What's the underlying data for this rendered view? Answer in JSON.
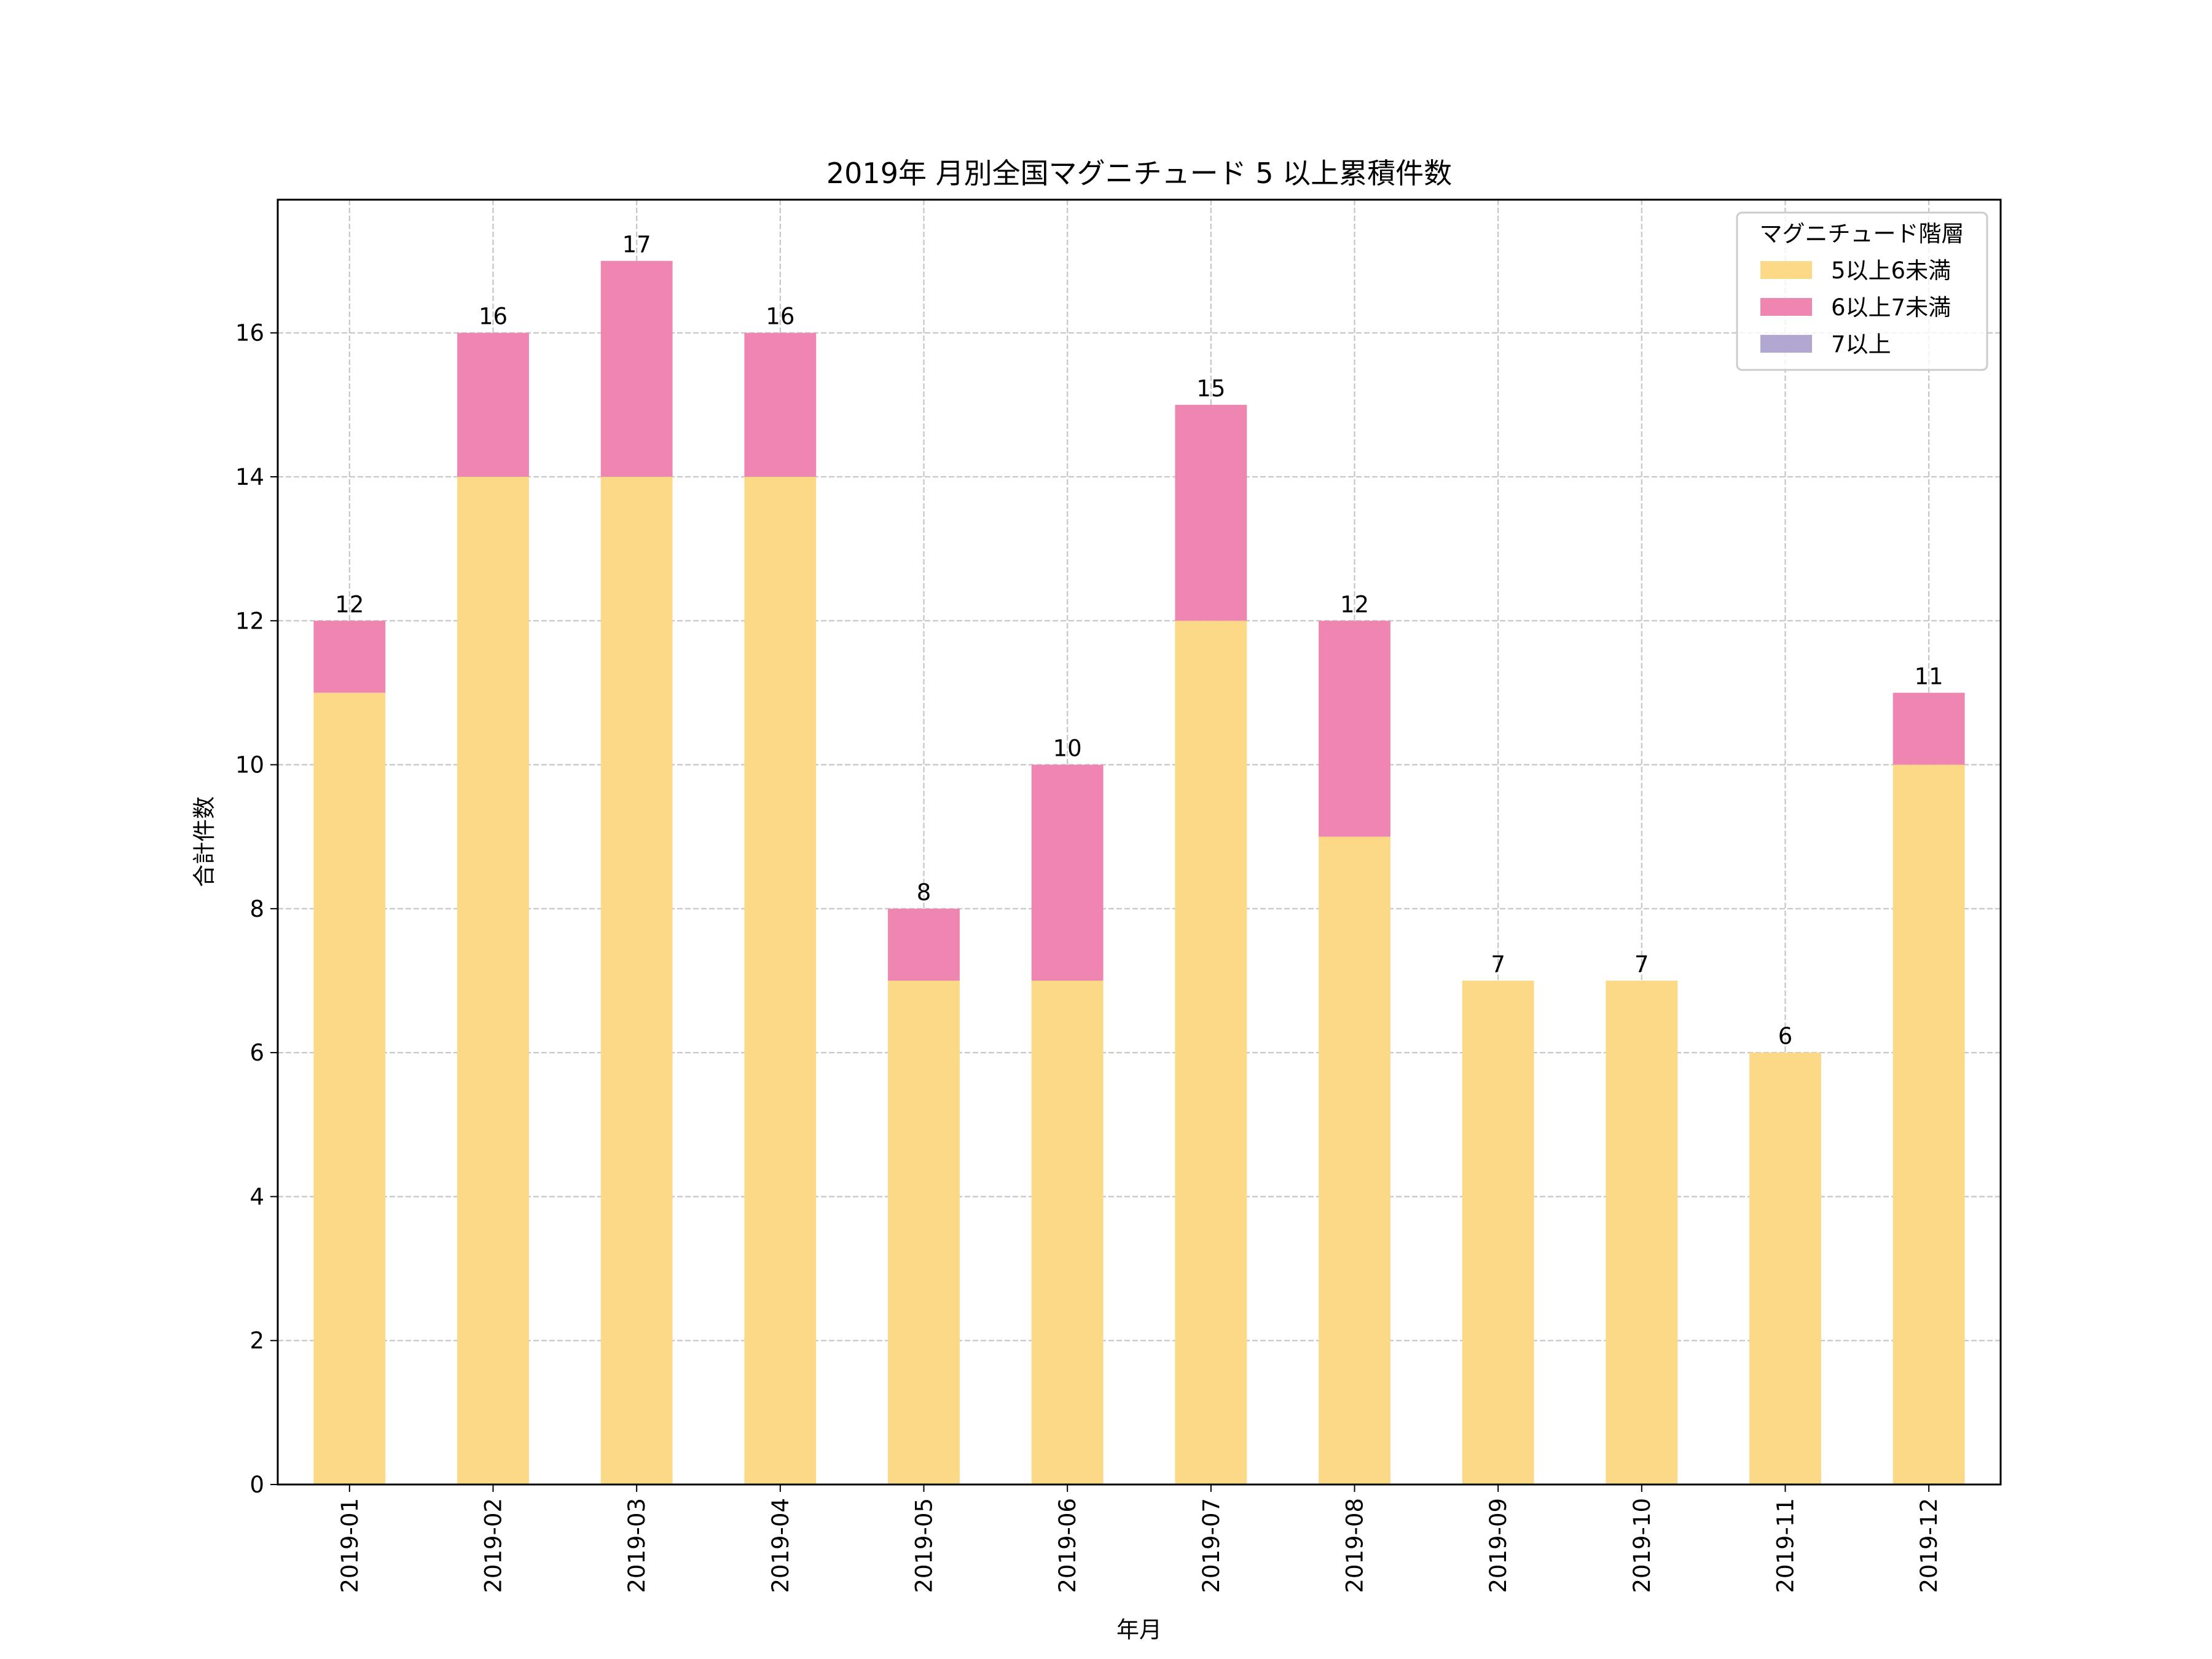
{
  "chart_data": {
    "type": "bar",
    "stacked": true,
    "title": "2019年 月別全国マグニチュード 5 以上累積件数",
    "xlabel": "年月",
    "ylabel": "合計件数",
    "categories": [
      "2019-01",
      "2019-02",
      "2019-03",
      "2019-04",
      "2019-05",
      "2019-06",
      "2019-07",
      "2019-08",
      "2019-09",
      "2019-10",
      "2019-11",
      "2019-12"
    ],
    "series": [
      {
        "name": "5以上6未満",
        "color": "#fbd986",
        "values": [
          11,
          14,
          14,
          14,
          7,
          7,
          12,
          9,
          7,
          7,
          6,
          10
        ]
      },
      {
        "name": "6以上7未満",
        "color": "#ee86b1",
        "values": [
          1,
          2,
          3,
          2,
          1,
          3,
          3,
          3,
          0,
          0,
          0,
          1
        ]
      },
      {
        "name": "7以上",
        "color": "#b1a7d0",
        "values": [
          0,
          0,
          0,
          0,
          0,
          0,
          0,
          0,
          0,
          0,
          0,
          0
        ]
      }
    ],
    "totals": [
      12,
      16,
      17,
      16,
      8,
      10,
      15,
      12,
      7,
      7,
      6,
      11
    ],
    "ylim": [
      0,
      17.85
    ],
    "yticks": [
      0,
      2,
      4,
      6,
      8,
      10,
      12,
      14,
      16
    ],
    "grid": true,
    "legend": {
      "title": "マグニチュード階層",
      "placement": "top-right"
    }
  }
}
